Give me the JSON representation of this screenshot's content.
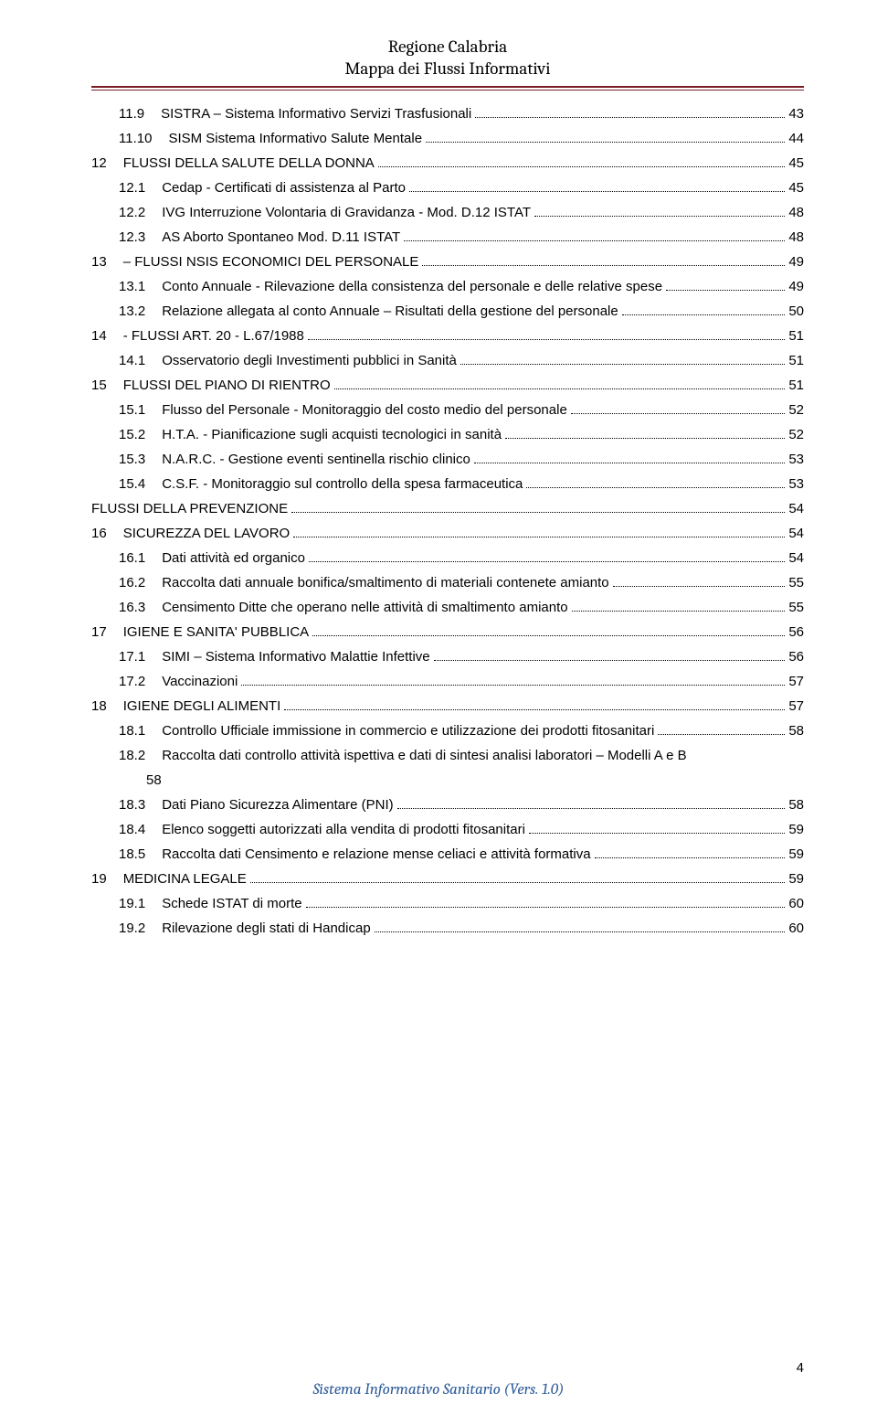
{
  "header": {
    "line1": "Regione Calabria",
    "line2": "Mappa dei Flussi Informativi"
  },
  "footer": "Sistema Informativo Sanitario (Vers. 1.0)",
  "page_number": "4",
  "toc": [
    {
      "level": 2,
      "num": "11.9",
      "text": "SISTRA – Sistema Informativo Servizi Trasfusionali",
      "page": "43"
    },
    {
      "level": 2,
      "num": "11.10",
      "text": "SISM Sistema Informativo Salute Mentale",
      "page": "44"
    },
    {
      "level": 1,
      "num": "12",
      "text": "FLUSSI DELLA SALUTE  DELLA DONNA",
      "page": "45"
    },
    {
      "level": 2,
      "num": "12.1",
      "text": "Cedap - Certificati di assistenza al Parto",
      "page": "45"
    },
    {
      "level": 2,
      "num": "12.2",
      "text": "IVG Interruzione Volontaria di Gravidanza  - Mod. D.12 ISTAT",
      "page": "48"
    },
    {
      "level": 2,
      "num": "12.3",
      "text": "AS Aborto Spontaneo Mod. D.11  ISTAT",
      "page": "48"
    },
    {
      "level": 1,
      "num": "13",
      "text": "– FLUSSI NSIS ECONOMICI DEL PERSONALE",
      "page": "49"
    },
    {
      "level": 2,
      "num": "13.1",
      "text": "Conto Annuale -  Rilevazione della consistenza del personale e delle relative spese",
      "page": "49",
      "tight": true
    },
    {
      "level": 2,
      "num": "13.2",
      "text": "Relazione allegata al conto Annuale – Risultati della gestione del personale",
      "page": "50"
    },
    {
      "level": 1,
      "num": "14",
      "text": "- FLUSSI ART. 20 - L.67/1988",
      "page": "51"
    },
    {
      "level": 2,
      "num": "14.1",
      "text": "Osservatorio degli Investimenti pubblici in Sanità",
      "page": "51"
    },
    {
      "level": 1,
      "num": "15",
      "text": "FLUSSI DEL PIANO DI RIENTRO",
      "page": "51"
    },
    {
      "level": 2,
      "num": "15.1",
      "text": "Flusso del Personale - Monitoraggio del costo medio del personale",
      "page": "52"
    },
    {
      "level": 2,
      "num": "15.2",
      "text": "H.T.A. - Pianificazione sugli acquisti tecnologici in sanità",
      "page": "52"
    },
    {
      "level": 2,
      "num": "15.3",
      "text": "N.A.R.C.  - Gestione eventi sentinella rischio clinico",
      "page": "53"
    },
    {
      "level": 2,
      "num": "15.4",
      "text": "C.S.F. - Monitoraggio sul controllo della spesa farmaceutica",
      "page": "53"
    },
    {
      "level": 0,
      "num": "",
      "text": "FLUSSI  DELLA PREVENZIONE",
      "page": "54"
    },
    {
      "level": 1,
      "num": "16",
      "text": "SICUREZZA DEL LAVORO",
      "page": "54"
    },
    {
      "level": 2,
      "num": "16.1",
      "text": "Dati attività ed organico",
      "page": "54"
    },
    {
      "level": 2,
      "num": "16.2",
      "text": "Raccolta dati annuale bonifica/smaltimento di materiali contenete amianto",
      "page": "55"
    },
    {
      "level": 2,
      "num": "16.3",
      "text": "Censimento Ditte che operano nelle attività di smaltimento amianto",
      "page": "55"
    },
    {
      "level": 1,
      "num": "17",
      "text": "IGIENE E SANITA' PUBBLICA",
      "page": "56"
    },
    {
      "level": 2,
      "num": "17.1",
      "text": "SIMI – Sistema Informativo  Malattie Infettive",
      "page": "56"
    },
    {
      "level": 2,
      "num": "17.2",
      "text": "Vaccinazioni",
      "page": "57"
    },
    {
      "level": 1,
      "num": "18",
      "text": "IGIENE DEGLI ALIMENTI",
      "page": "57"
    },
    {
      "level": 2,
      "num": "18.1",
      "text": "Controllo Ufficiale immissione in commercio e utilizzazione dei prodotti fitosanitari",
      "page": "58"
    },
    {
      "level": 2,
      "num": "18.2",
      "text": "Raccolta dati controllo attività ispettiva e dati di sintesi analisi laboratori – Modelli A e B",
      "page": "58",
      "wrap": true,
      "wrap_below": "58"
    },
    {
      "level": 2,
      "num": "18.3",
      "text": "Dati Piano Sicurezza Alimentare (PNI)",
      "page": "58"
    },
    {
      "level": 2,
      "num": "18.4",
      "text": "Elenco soggetti autorizzati alla vendita di prodotti fitosanitari",
      "page": "59"
    },
    {
      "level": 2,
      "num": "18.5",
      "text": "Raccolta dati Censimento e relazione mense celiaci e attività formativa",
      "page": "59"
    },
    {
      "level": 1,
      "num": "19",
      "text": "MEDICINA LEGALE",
      "page": "59"
    },
    {
      "level": 2,
      "num": "19.1",
      "text": "Schede ISTAT di morte",
      "page": "60"
    },
    {
      "level": 2,
      "num": "19.2",
      "text": "Rilevazione degli stati di Handicap",
      "page": "60"
    }
  ]
}
